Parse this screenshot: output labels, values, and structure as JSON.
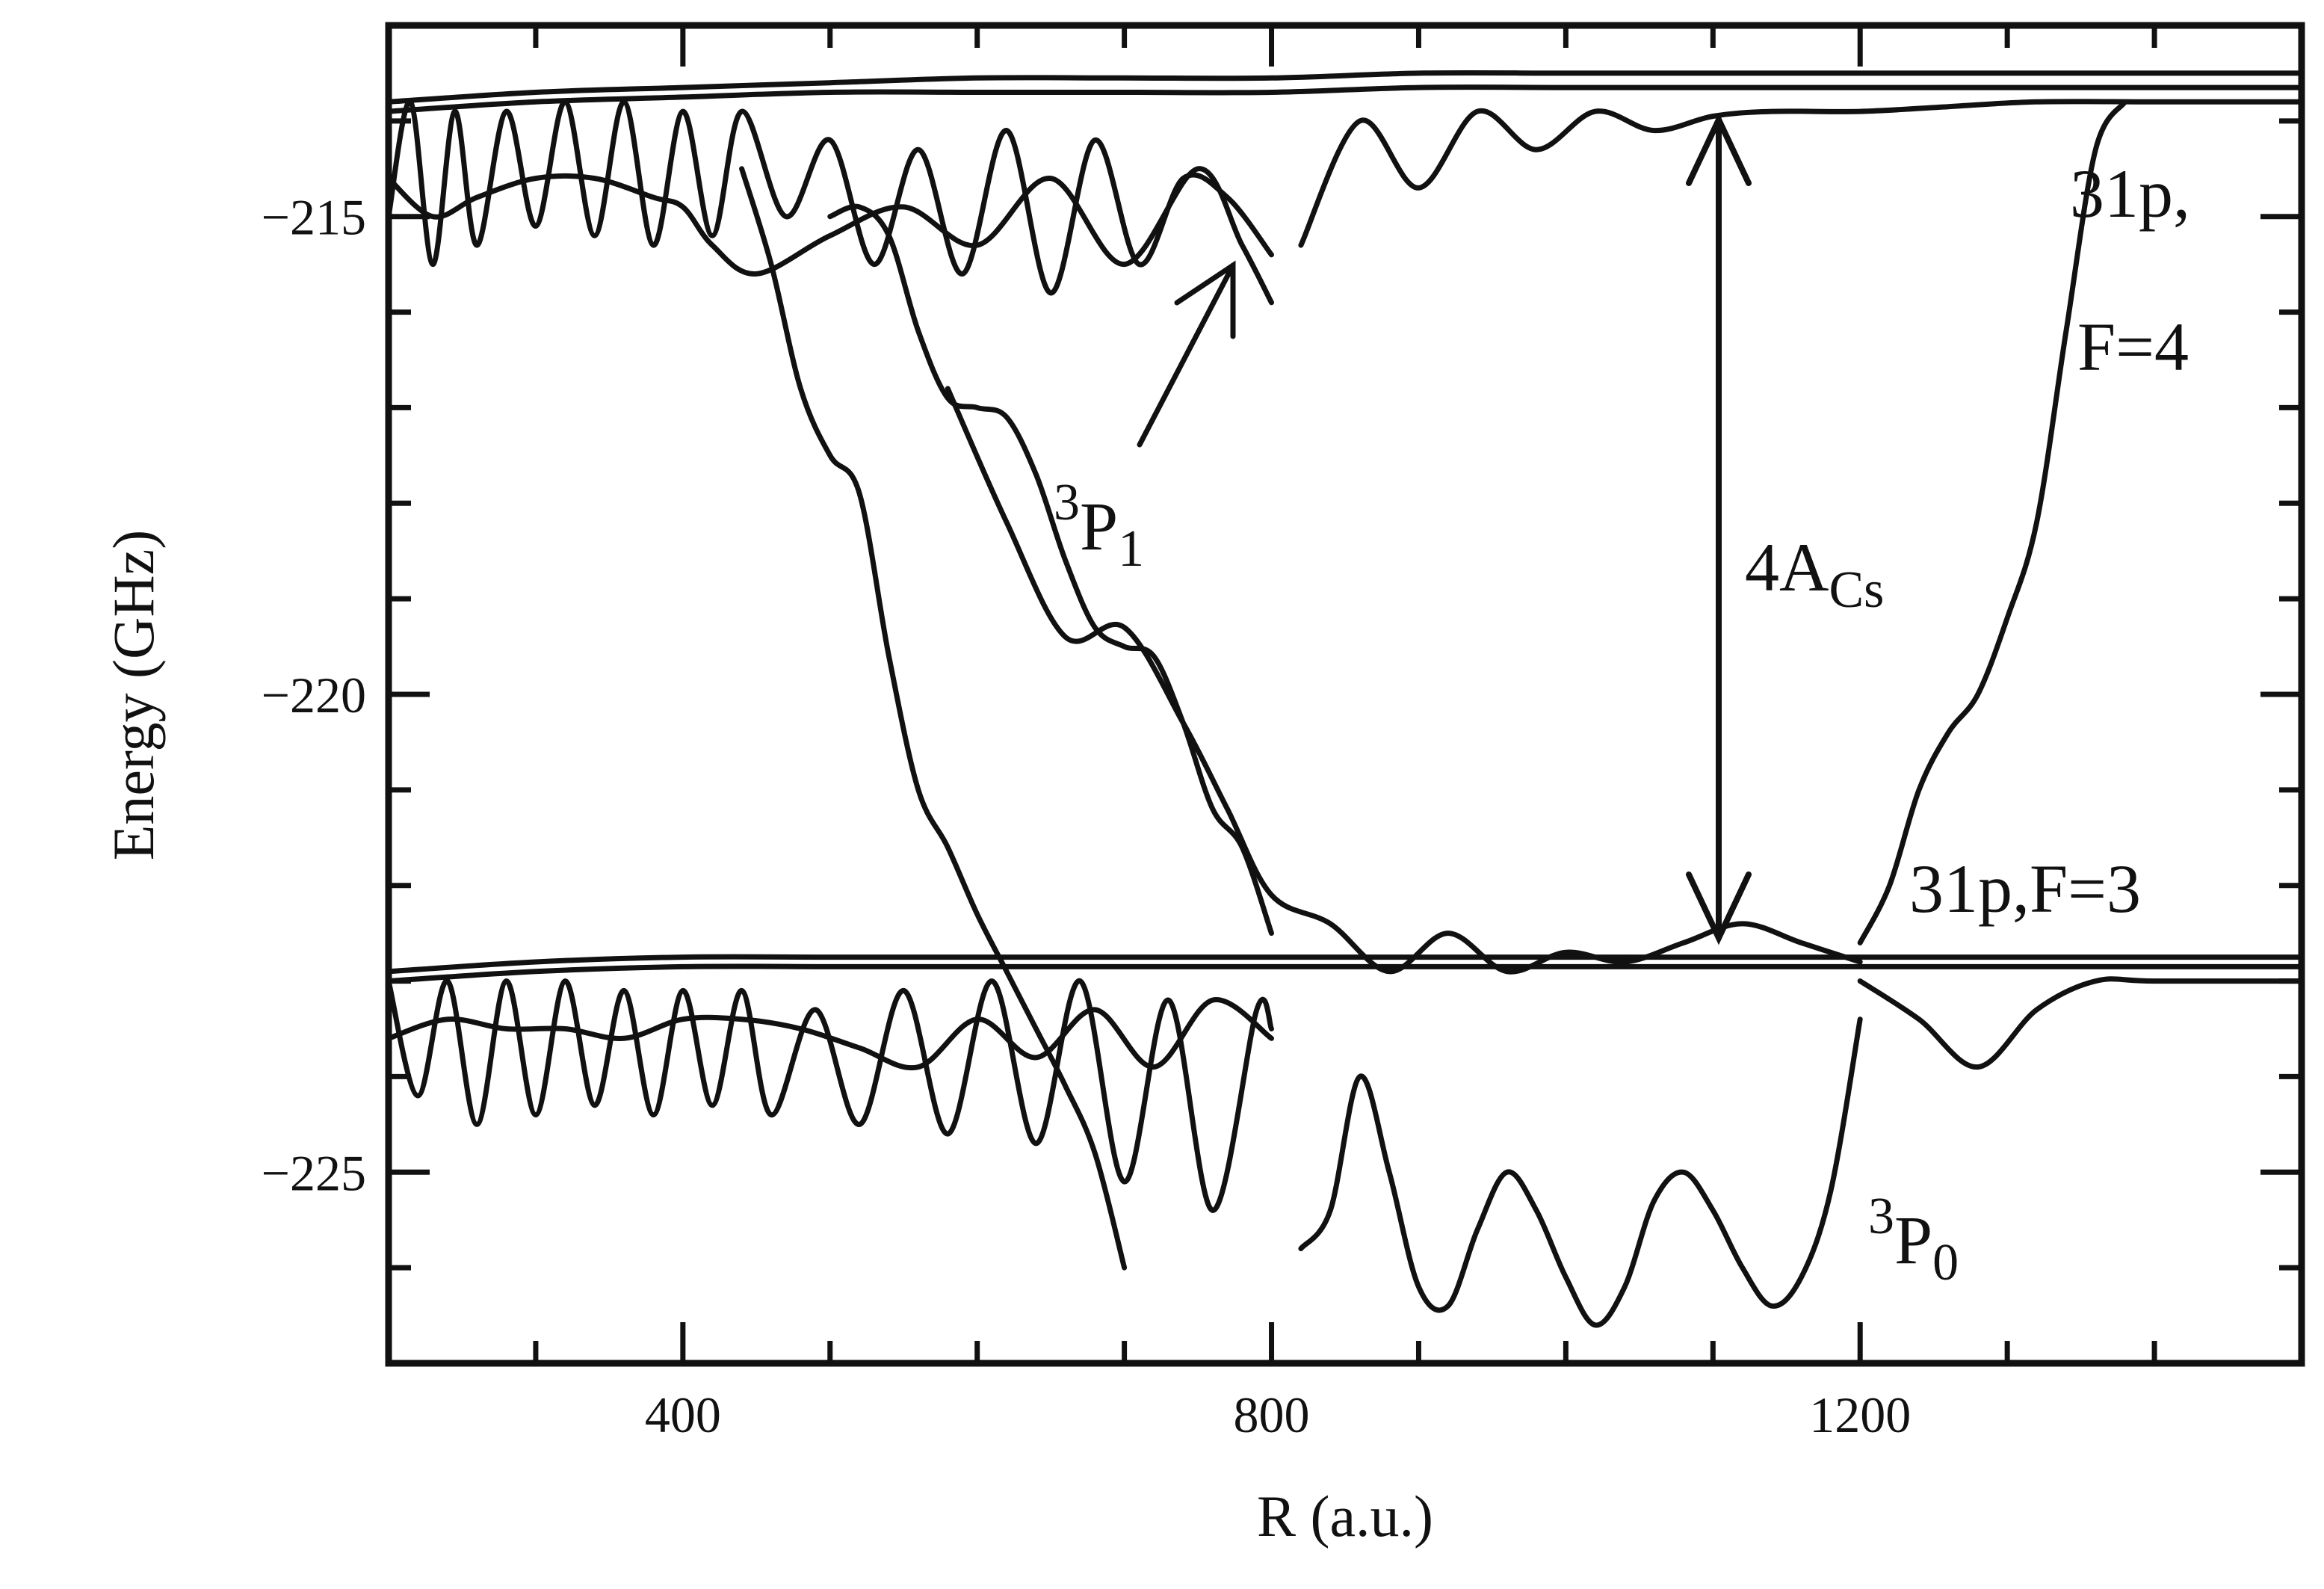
{
  "chart_data": {
    "type": "line",
    "xlabel": "R (a.u.)",
    "ylabel": "Energy (GHz)",
    "xlim": [
      200,
      1500
    ],
    "ylim": [
      -227,
      -213
    ],
    "xticks": [
      400,
      800,
      1200
    ],
    "xtick_labels": [
      "400",
      "800",
      "1200"
    ],
    "yticks": [
      -215,
      -220,
      -225
    ],
    "ytick_labels": [
      "−215",
      "−220",
      "−225"
    ],
    "grid": false,
    "annotations": {
      "label_31pF4_a": "31p,",
      "label_31pF4_b": "F=4",
      "label_31pF3": "31p,F=3",
      "label_4ACs_main": "4A",
      "label_4ACs_sub": "Cs",
      "label_3P1_sup": "3",
      "label_3P1_main": "P",
      "label_3P1_sub": "1",
      "label_3P0_sup": "3",
      "label_3P0_main": "P",
      "label_3P0_sub": "0"
    },
    "series": [
      {
        "x": [
          200,
          300,
          400,
          500,
          600,
          700,
          800,
          900,
          1000,
          1100,
          1200,
          1300,
          1400,
          1500
        ],
        "y": [
          -213.8,
          -213.7,
          -213.65,
          -213.6,
          -213.55,
          -213.55,
          -213.55,
          -213.5,
          -213.5,
          -213.5,
          -213.5,
          -213.5,
          -213.5,
          -213.5
        ]
      },
      {
        "x": [
          200,
          300,
          400,
          500,
          600,
          700,
          800,
          900,
          1000,
          1100,
          1200,
          1300,
          1400,
          1500
        ],
        "y": [
          -213.9,
          -213.8,
          -213.75,
          -213.7,
          -213.7,
          -213.7,
          -213.7,
          -213.65,
          -213.65,
          -213.65,
          -213.65,
          -213.65,
          -213.65,
          -213.65
        ]
      },
      {
        "x": [
          200,
          300,
          400,
          500,
          600,
          700,
          800,
          900,
          1000,
          1100,
          1200,
          1300,
          1400,
          1500
        ],
        "y": [
          -222.9,
          -222.8,
          -222.75,
          -222.75,
          -222.75,
          -222.75,
          -222.75,
          -222.75,
          -222.75,
          -222.75,
          -222.75,
          -222.75,
          -222.75,
          -222.75
        ]
      },
      {
        "x": [
          200,
          300,
          400,
          500,
          600,
          700,
          800,
          900,
          1000,
          1100,
          1200,
          1300,
          1400,
          1500
        ],
        "y": [
          -223.0,
          -222.9,
          -222.85,
          -222.85,
          -222.85,
          -222.85,
          -222.85,
          -222.85,
          -222.85,
          -222.85,
          -222.85,
          -222.85,
          -222.85,
          -222.85
        ]
      },
      {
        "x": [
          200,
          215,
          230,
          245,
          260,
          280,
          300,
          320,
          340,
          360,
          380,
          400,
          420,
          440,
          470,
          500,
          530,
          560,
          590,
          620,
          650,
          680,
          710,
          740,
          770,
          800
        ],
        "y": [
          -215.0,
          -213.8,
          -215.5,
          -213.9,
          -215.3,
          -213.9,
          -215.1,
          -213.8,
          -215.2,
          -213.8,
          -215.3,
          -213.9,
          -215.2,
          -213.9,
          -215.0,
          -214.2,
          -215.5,
          -214.3,
          -215.6,
          -214.1,
          -215.8,
          -214.2,
          -215.5,
          -214.6,
          -214.8,
          -215.4
        ]
      },
      {
        "x": [
          200,
          230,
          260,
          300,
          340,
          380,
          400,
          420,
          450,
          500,
          550,
          600,
          650,
          700,
          750,
          780,
          800
        ],
        "y": [
          -214.6,
          -215.0,
          -214.8,
          -214.6,
          -214.6,
          -214.8,
          -214.9,
          -215.3,
          -215.6,
          -215.2,
          -214.9,
          -215.3,
          -214.6,
          -215.5,
          -214.5,
          -215.3,
          -215.9
        ]
      },
      {
        "x": [
          820,
          860,
          900,
          940,
          980,
          1020,
          1060,
          1100,
          1140,
          1200,
          1260,
          1320,
          1400,
          1500
        ],
        "y": [
          -215.3,
          -214.0,
          -214.7,
          -213.9,
          -214.3,
          -213.9,
          -214.1,
          -213.95,
          -213.9,
          -213.9,
          -213.85,
          -213.8,
          -213.8,
          -213.8
        ]
      },
      {
        "x": [
          440,
          460,
          480,
          500,
          520,
          540,
          560,
          580,
          600,
          620,
          640,
          660,
          680,
          700
        ],
        "y": [
          -214.5,
          -215.5,
          -216.8,
          -217.5,
          -217.9,
          -219.6,
          -221.0,
          -221.6,
          -222.3,
          -222.9,
          -223.5,
          -224.1,
          -224.8,
          -226.0
        ]
      },
      {
        "x": [
          500,
          520,
          540,
          560,
          580,
          600,
          620,
          640,
          660,
          680,
          700,
          720,
          740,
          760,
          780,
          800
        ],
        "y": [
          -215.0,
          -214.9,
          -215.2,
          -216.2,
          -216.9,
          -217.0,
          -217.1,
          -217.7,
          -218.6,
          -219.3,
          -219.5,
          -219.6,
          -220.3,
          -221.2,
          -221.6,
          -222.5
        ]
      },
      {
        "x": [
          580,
          620,
          660,
          700,
          740,
          770,
          800,
          840,
          880,
          920,
          960,
          1000,
          1040,
          1080,
          1120,
          1160,
          1200
        ],
        "y": [
          -216.8,
          -218.2,
          -219.4,
          -219.3,
          -220.3,
          -221.2,
          -222.1,
          -222.4,
          -222.9,
          -222.5,
          -222.9,
          -222.7,
          -222.8,
          -222.6,
          -222.4,
          -222.6,
          -222.8
        ]
      },
      {
        "x": [
          1200,
          1220,
          1240,
          1260,
          1280,
          1300,
          1320,
          1340,
          1360,
          1380
        ],
        "y": [
          -222.6,
          -222.0,
          -221.0,
          -220.4,
          -220.0,
          -219.2,
          -218.2,
          -216.2,
          -214.3,
          -213.8
        ]
      },
      {
        "x": [
          820,
          840,
          860,
          880,
          900,
          920,
          940,
          960,
          980,
          1000,
          1020,
          1040,
          1060,
          1080,
          1100,
          1120,
          1140,
          1160,
          1180,
          1200
        ],
        "y": [
          -225.8,
          -225.4,
          -224.0,
          -225.0,
          -226.2,
          -226.4,
          -225.6,
          -225.0,
          -225.4,
          -226.1,
          -226.6,
          -226.2,
          -225.3,
          -225.0,
          -225.4,
          -226.0,
          -226.4,
          -226.1,
          -225.2,
          -223.4
        ]
      },
      {
        "x": [
          1200,
          1240,
          1280,
          1320,
          1360,
          1400,
          1500
        ],
        "y": [
          -223.0,
          -223.4,
          -223.9,
          -223.3,
          -223.0,
          -223.0,
          -223.0
        ]
      },
      {
        "x": [
          200,
          220,
          240,
          260,
          280,
          300,
          320,
          340,
          360,
          380,
          400,
          420,
          440,
          460,
          490,
          520,
          550,
          580,
          610,
          640,
          670,
          700,
          730,
          760,
          790,
          800
        ],
        "y": [
          -223.0,
          -224.2,
          -223.0,
          -224.5,
          -223.0,
          -224.4,
          -223.0,
          -224.3,
          -223.1,
          -224.4,
          -223.1,
          -224.3,
          -223.1,
          -224.4,
          -223.3,
          -224.5,
          -223.1,
          -224.6,
          -223.0,
          -224.7,
          -223.0,
          -225.1,
          -223.2,
          -225.4,
          -223.3,
          -223.5
        ]
      },
      {
        "x": [
          200,
          240,
          280,
          320,
          360,
          400,
          440,
          480,
          520,
          560,
          600,
          640,
          680,
          720,
          760,
          800
        ],
        "y": [
          -223.6,
          -223.4,
          -223.5,
          -223.5,
          -223.6,
          -223.4,
          -223.4,
          -223.5,
          -223.7,
          -223.9,
          -223.4,
          -223.8,
          -223.3,
          -223.9,
          -223.2,
          -223.6
        ]
      }
    ]
  }
}
